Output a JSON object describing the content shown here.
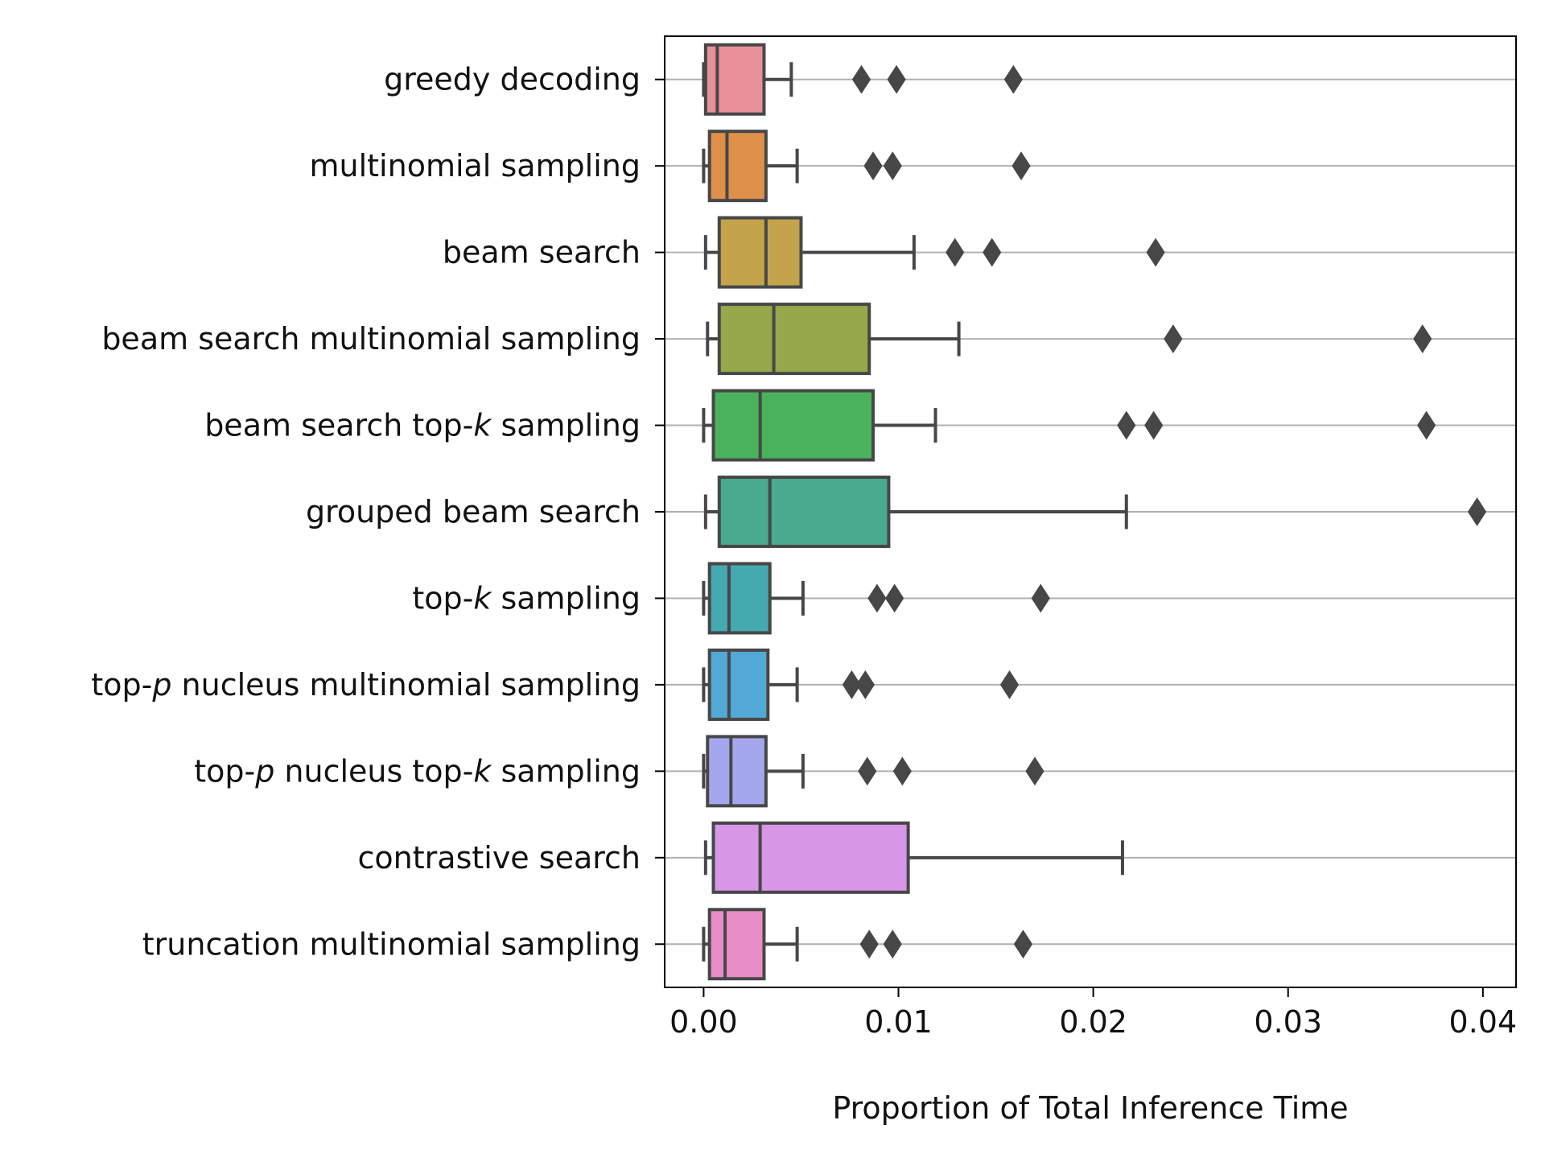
{
  "chart_data": {
    "type": "box",
    "orientation": "horizontal",
    "xlabel": "Proportion of Total Inference Time",
    "ylabel": "",
    "xlim": [
      -0.002,
      0.0417
    ],
    "xticks": [
      0.0,
      0.01,
      0.02,
      0.03,
      0.04
    ],
    "xtick_labels": [
      "0.00",
      "0.01",
      "0.02",
      "0.03",
      "0.04"
    ],
    "grid": "horizontal lines at each category",
    "categories": [
      {
        "label": "greedy decoding",
        "segments": [
          {
            "text": "greedy decoding",
            "italic": false
          }
        ],
        "min": 0.0,
        "q1": 0.0001,
        "median": 0.0007,
        "q3": 0.0031,
        "max": 0.0045,
        "outliers": [
          0.0081,
          0.0099,
          0.0159
        ],
        "color": "#e8919b"
      },
      {
        "label": "multinomial sampling",
        "segments": [
          {
            "text": "multinomial sampling",
            "italic": false
          }
        ],
        "min": 0.0,
        "q1": 0.0003,
        "median": 0.0012,
        "q3": 0.0032,
        "max": 0.0048,
        "outliers": [
          0.0087,
          0.0097,
          0.0163
        ],
        "color": "#de8f4a"
      },
      {
        "label": "beam search",
        "segments": [
          {
            "text": "beam search",
            "italic": false
          }
        ],
        "min": 0.0001,
        "q1": 0.0008,
        "median": 0.0032,
        "q3": 0.005,
        "max": 0.0108,
        "outliers": [
          0.0129,
          0.0148,
          0.0232
        ],
        "color": "#c4a44a"
      },
      {
        "label": "beam search multinomial sampling",
        "segments": [
          {
            "text": "beam search multinomial sampling",
            "italic": false
          }
        ],
        "min": 0.0002,
        "q1": 0.0008,
        "median": 0.0036,
        "q3": 0.0085,
        "max": 0.0131,
        "outliers": [
          0.0241,
          0.0369
        ],
        "color": "#95a94a"
      },
      {
        "label": "beam search top-k sampling",
        "segments": [
          {
            "text": "beam search top-",
            "italic": false
          },
          {
            "text": "k",
            "italic": true
          },
          {
            "text": " sampling",
            "italic": false
          }
        ],
        "min": 0.0,
        "q1": 0.0005,
        "median": 0.0029,
        "q3": 0.0087,
        "max": 0.0119,
        "outliers": [
          0.0217,
          0.0231,
          0.0371
        ],
        "color": "#4bb25c"
      },
      {
        "label": "grouped beam search",
        "segments": [
          {
            "text": "grouped beam search",
            "italic": false
          }
        ],
        "min": 0.0001,
        "q1": 0.0008,
        "median": 0.0034,
        "q3": 0.0095,
        "max": 0.0217,
        "outliers": [
          0.0397
        ],
        "color": "#48aa8e"
      },
      {
        "label": "top-k sampling",
        "segments": [
          {
            "text": "top-",
            "italic": false
          },
          {
            "text": "k",
            "italic": true
          },
          {
            "text": " sampling",
            "italic": false
          }
        ],
        "min": 0.0,
        "q1": 0.0003,
        "median": 0.0013,
        "q3": 0.0034,
        "max": 0.0051,
        "outliers": [
          0.0089,
          0.0098,
          0.0173
        ],
        "color": "#45a9b0"
      },
      {
        "label": "top-p nucleus multinomial sampling",
        "segments": [
          {
            "text": "top-",
            "italic": false
          },
          {
            "text": "p",
            "italic": true
          },
          {
            "text": " nucleus multinomial sampling",
            "italic": false
          }
        ],
        "min": 0.0,
        "q1": 0.0003,
        "median": 0.0013,
        "q3": 0.0033,
        "max": 0.0048,
        "outliers": [
          0.0076,
          0.0083,
          0.0157
        ],
        "color": "#52a9d6"
      },
      {
        "label": "top-p nucleus top-k sampling",
        "segments": [
          {
            "text": "top-",
            "italic": false
          },
          {
            "text": "p",
            "italic": true
          },
          {
            "text": " nucleus top-",
            "italic": false
          },
          {
            "text": "k",
            "italic": true
          },
          {
            "text": " sampling",
            "italic": false
          }
        ],
        "min": 0.0,
        "q1": 0.0002,
        "median": 0.0014,
        "q3": 0.0032,
        "max": 0.0051,
        "outliers": [
          0.0084,
          0.0102,
          0.017
        ],
        "color": "#a5a7ee"
      },
      {
        "label": "contrastive search",
        "segments": [
          {
            "text": "contrastive search",
            "italic": false
          }
        ],
        "min": 0.0001,
        "q1": 0.0005,
        "median": 0.0029,
        "q3": 0.0105,
        "max": 0.0215,
        "outliers": [],
        "color": "#d796e6"
      },
      {
        "label": "truncation multinomial sampling",
        "segments": [
          {
            "text": "truncation multinomial sampling",
            "italic": false
          }
        ],
        "min": 0.0,
        "q1": 0.0003,
        "median": 0.0011,
        "q3": 0.0031,
        "max": 0.0048,
        "outliers": [
          0.0085,
          0.0097,
          0.0164
        ],
        "color": "#e98dc8"
      }
    ]
  }
}
